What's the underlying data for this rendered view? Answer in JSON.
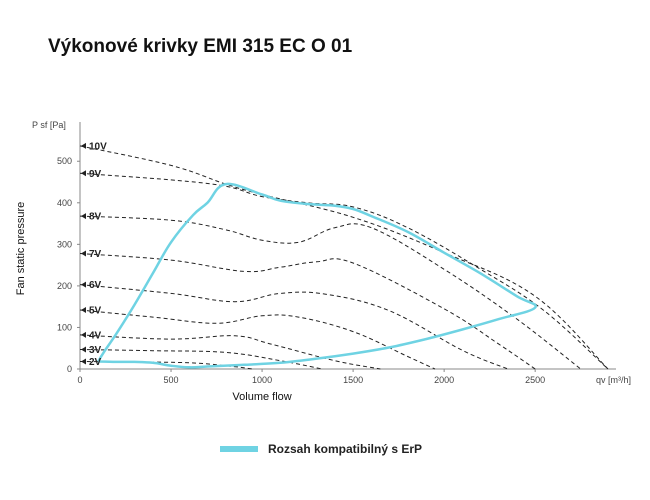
{
  "page": {
    "title": "Výkonové krivky EMI 315 EC O 01"
  },
  "chart_data": {
    "type": "line",
    "title": "Výkonové krivky EMI 315 EC O 01",
    "xlabel": "Volume flow",
    "ylabel": "Fan static pressure",
    "x_unit": "qv [m³/h]",
    "y_unit": "P sf [Pa]",
    "xlim": [
      0,
      2900
    ],
    "ylim": [
      0,
      580
    ],
    "x_ticks": [
      "0",
      "500",
      "1000",
      "1500",
      "2000",
      "2500"
    ],
    "x_tick_values": [
      0,
      500,
      1000,
      1500,
      2000,
      2500
    ],
    "y_ticks": [
      "0",
      "100",
      "200",
      "300",
      "400",
      "500"
    ],
    "y_tick_values": [
      0,
      100,
      200,
      300,
      400,
      500
    ],
    "grid": false,
    "legend_position": "bottom",
    "colors": {
      "erp": "#6fd3e3",
      "curve": "#222222",
      "axis": "#888888"
    },
    "voltage_curves": [
      {
        "label": "10V",
        "marker_y": 537,
        "points": [
          [
            0,
            537
          ],
          [
            500,
            490
          ],
          [
            800,
            445
          ],
          [
            1000,
            420
          ],
          [
            1500,
            365
          ],
          [
            2000,
            280
          ],
          [
            2500,
            175
          ],
          [
            2900,
            0
          ]
        ]
      },
      {
        "label": "9V",
        "marker_y": 471,
        "points": [
          [
            0,
            471
          ],
          [
            500,
            455
          ],
          [
            800,
            440
          ],
          [
            1000,
            415
          ],
          [
            1250,
            400
          ],
          [
            1500,
            390
          ],
          [
            1800,
            340
          ],
          [
            2200,
            240
          ],
          [
            2550,
            140
          ],
          [
            2900,
            0
          ]
        ]
      },
      {
        "label": "8V",
        "marker_y": 368,
        "points": [
          [
            0,
            368
          ],
          [
            500,
            358
          ],
          [
            800,
            335
          ],
          [
            1000,
            310
          ],
          [
            1200,
            305
          ],
          [
            1400,
            340
          ],
          [
            1600,
            340
          ],
          [
            2000,
            240
          ],
          [
            2400,
            120
          ],
          [
            2750,
            0
          ]
        ]
      },
      {
        "label": "7V",
        "marker_y": 278,
        "points": [
          [
            0,
            278
          ],
          [
            500,
            262
          ],
          [
            900,
            235
          ],
          [
            1100,
            245
          ],
          [
            1300,
            258
          ],
          [
            1500,
            255
          ],
          [
            2000,
            145
          ],
          [
            2300,
            60
          ],
          [
            2500,
            0
          ]
        ]
      },
      {
        "label": "6V",
        "marker_y": 203,
        "points": [
          [
            0,
            203
          ],
          [
            500,
            182
          ],
          [
            850,
            162
          ],
          [
            1100,
            182
          ],
          [
            1350,
            180
          ],
          [
            1700,
            140
          ],
          [
            2100,
            45
          ],
          [
            2350,
            0
          ]
        ]
      },
      {
        "label": "5V",
        "marker_y": 142,
        "points": [
          [
            0,
            142
          ],
          [
            400,
            125
          ],
          [
            750,
            110
          ],
          [
            1000,
            128
          ],
          [
            1200,
            125
          ],
          [
            1500,
            90
          ],
          [
            1800,
            30
          ],
          [
            1950,
            0
          ]
        ]
      },
      {
        "label": "4V",
        "marker_y": 82,
        "points": [
          [
            0,
            82
          ],
          [
            500,
            72
          ],
          [
            850,
            80
          ],
          [
            1050,
            60
          ],
          [
            1400,
            20
          ],
          [
            1650,
            0
          ]
        ]
      },
      {
        "label": "3V",
        "marker_y": 47,
        "points": [
          [
            0,
            47
          ],
          [
            400,
            44
          ],
          [
            800,
            40
          ],
          [
            1100,
            20
          ],
          [
            1330,
            0
          ]
        ]
      },
      {
        "label": "2V",
        "marker_y": 18,
        "points": [
          [
            0,
            18
          ],
          [
            300,
            17
          ],
          [
            600,
            15
          ],
          [
            800,
            8
          ],
          [
            950,
            0
          ]
        ]
      }
    ],
    "erp_boundary": {
      "name": "Rozsah kompatibilný s ErP",
      "points": [
        [
          100,
          18
        ],
        [
          130,
          40
        ],
        [
          200,
          85
        ],
        [
          300,
          155
        ],
        [
          400,
          230
        ],
        [
          500,
          305
        ],
        [
          620,
          370
        ],
        [
          700,
          400
        ],
        [
          800,
          445
        ],
        [
          1000,
          420
        ],
        [
          1100,
          405
        ],
        [
          1250,
          397
        ],
        [
          1400,
          393
        ],
        [
          1500,
          385
        ],
        [
          1600,
          368
        ],
        [
          1800,
          330
        ],
        [
          2000,
          280
        ],
        [
          2200,
          230
        ],
        [
          2400,
          175
        ],
        [
          2500,
          148
        ],
        [
          2300,
          120
        ],
        [
          2100,
          95
        ],
        [
          1900,
          72
        ],
        [
          1700,
          52
        ],
        [
          1500,
          37
        ],
        [
          1300,
          25
        ],
        [
          1100,
          15
        ],
        [
          900,
          10
        ],
        [
          700,
          6
        ],
        [
          600,
          4
        ],
        [
          500,
          8
        ],
        [
          400,
          15
        ],
        [
          300,
          17
        ],
        [
          200,
          17
        ],
        [
          100,
          18
        ]
      ]
    }
  },
  "legend": {
    "label": "Rozsah kompatibilný s ErP"
  }
}
